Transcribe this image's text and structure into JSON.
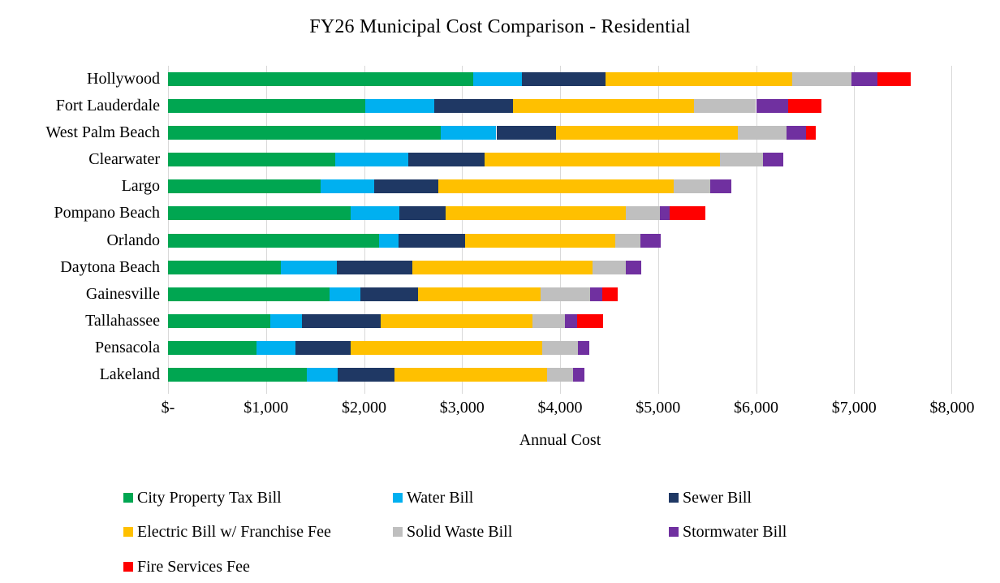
{
  "chart_data": {
    "type": "bar",
    "variant": "horizontal-stacked",
    "title": "FY26 Municipal Cost Comparison - Residential",
    "xlabel": "Annual Cost",
    "xlim": [
      0,
      8000
    ],
    "grid": true,
    "gridline_color": "#D9D9D9",
    "legend_position": "bottom",
    "xticks": [
      {
        "label": "$-",
        "value": 0
      },
      {
        "label": "$1,000",
        "value": 1000
      },
      {
        "label": "$2,000",
        "value": 2000
      },
      {
        "label": "$3,000",
        "value": 3000
      },
      {
        "label": "$4,000",
        "value": 4000
      },
      {
        "label": "$5,000",
        "value": 5000
      },
      {
        "label": "$6,000",
        "value": 6000
      },
      {
        "label": "$7,000",
        "value": 7000
      },
      {
        "label": "$8,000",
        "value": 8000
      }
    ],
    "categories": [
      "Hollywood",
      "Fort Lauderdale",
      "West Palm Beach",
      "Clearwater",
      "Largo",
      "Pompano Beach",
      "Orlando",
      "Daytona Beach",
      "Gainesville",
      "Tallahassee",
      "Pensacola",
      "Lakeland"
    ],
    "series": [
      {
        "name": "City Property Tax Bill",
        "color": "#00A651",
        "values": [
          3110,
          2010,
          2780,
          1710,
          1560,
          1860,
          2150,
          1150,
          1650,
          1040,
          900,
          1420
        ]
      },
      {
        "name": "Water Bill",
        "color": "#00B0F0",
        "values": [
          500,
          710,
          570,
          740,
          540,
          500,
          200,
          570,
          310,
          330,
          400,
          310
        ]
      },
      {
        "name": "Sewer Bill",
        "color": "#1F3864",
        "values": [
          850,
          800,
          610,
          780,
          660,
          470,
          680,
          770,
          590,
          800,
          560,
          580
        ]
      },
      {
        "name": "Electric Bill w/ Franchise Fee",
        "color": "#FFC000",
        "values": [
          1910,
          1850,
          1850,
          2400,
          2400,
          1840,
          1530,
          1840,
          1250,
          1550,
          1960,
          1560
        ]
      },
      {
        "name": "Solid Waste Bill",
        "color": "#BFBFBF",
        "values": [
          600,
          630,
          500,
          440,
          370,
          350,
          260,
          340,
          510,
          330,
          360,
          260
        ]
      },
      {
        "name": "Stormwater Bill",
        "color": "#7030A0",
        "values": [
          270,
          330,
          200,
          210,
          220,
          100,
          210,
          160,
          120,
          120,
          120,
          120
        ]
      },
      {
        "name": "Fire Services Fee",
        "color": "#FF0000",
        "values": [
          340,
          340,
          100,
          0,
          0,
          360,
          0,
          0,
          160,
          270,
          0,
          0
        ]
      }
    ],
    "totals": [
      7580,
      6670,
      6610,
      6280,
      5750,
      5480,
      5030,
      4830,
      4590,
      4440,
      4300,
      4250
    ]
  }
}
